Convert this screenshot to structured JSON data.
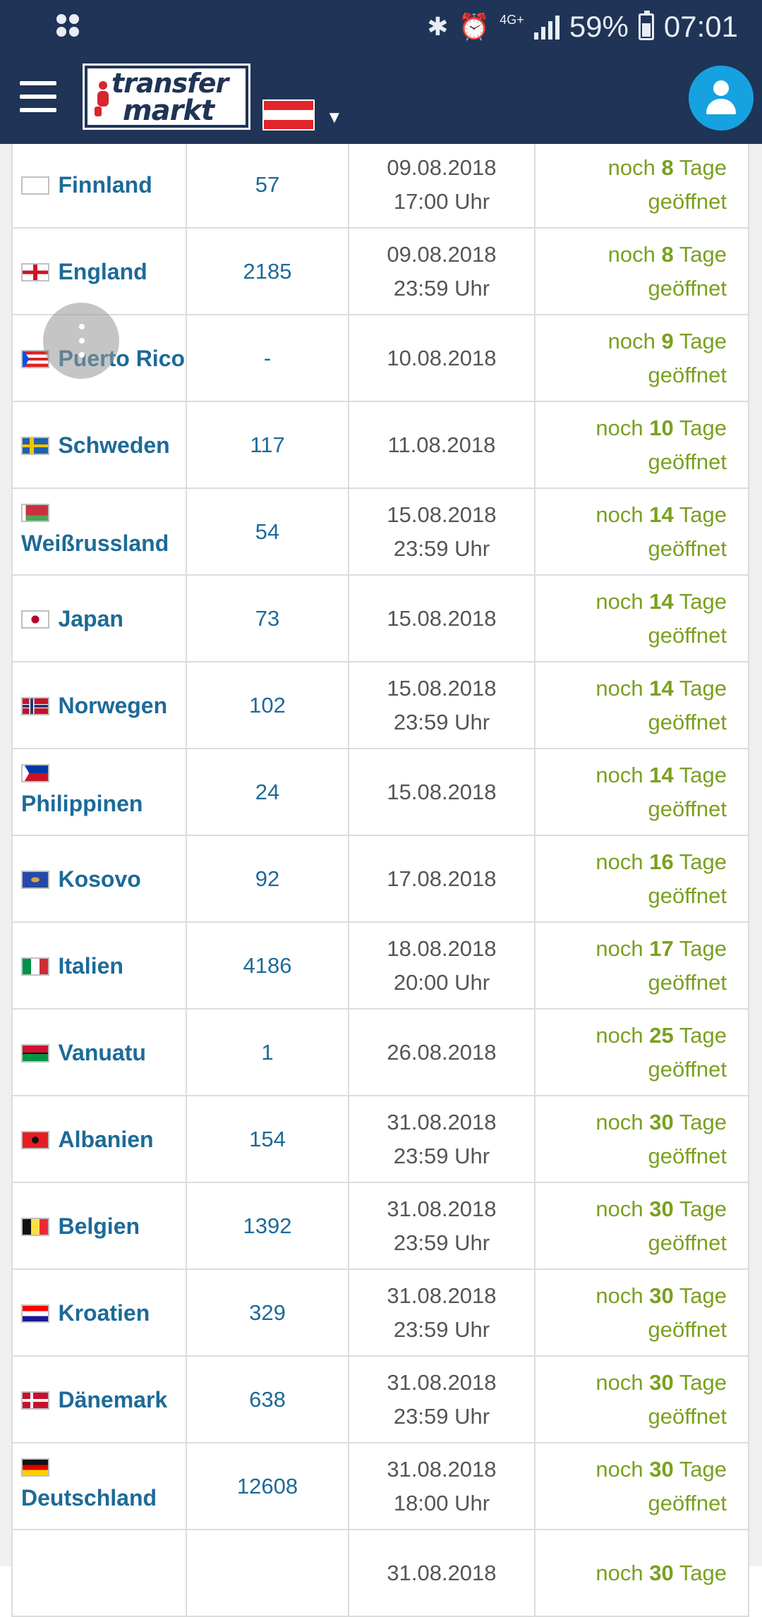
{
  "statusbar": {
    "network": "4G+",
    "battery": "59%",
    "time": "07:01",
    "battery_level": 0.59
  },
  "header": {
    "logo_line1": "transfer",
    "logo_line2": "markt",
    "country_flag": "Austria",
    "accent": "#16a2e0",
    "bg": "#1f3456"
  },
  "colors": {
    "country": "#1d6a98",
    "open": "#7aa01f"
  },
  "rows": [
    {
      "country": "Finnland",
      "flag": "finland",
      "count": "57",
      "date": "09.08.2018",
      "time": "17:00 Uhr",
      "status_pre": "noch",
      "days": "8",
      "status_post": "Tage",
      "status_line2": "geöffnet"
    },
    {
      "country": "England",
      "flag": "england",
      "count": "2185",
      "date": "09.08.2018",
      "time": "23:59 Uhr",
      "status_pre": "noch",
      "days": "8",
      "status_post": "Tage",
      "status_line2": "geöffnet"
    },
    {
      "country": "Puerto Rico",
      "flag": "puerto-rico",
      "count": "-",
      "date": "10.08.2018",
      "time": "",
      "status_pre": "noch",
      "days": "9",
      "status_post": "Tage",
      "status_line2": "geöffnet"
    },
    {
      "country": "Schweden",
      "flag": "sweden",
      "count": "117",
      "date": "11.08.2018",
      "time": "",
      "status_pre": "noch",
      "days": "10",
      "status_post": "Tage",
      "status_line2": "geöffnet"
    },
    {
      "country": "Weißrussland",
      "flag": "belarus",
      "count": "54",
      "date": "15.08.2018",
      "time": "23:59 Uhr",
      "status_pre": "noch",
      "days": "14",
      "status_post": "Tage",
      "status_line2": "geöffnet"
    },
    {
      "country": "Japan",
      "flag": "japan",
      "count": "73",
      "date": "15.08.2018",
      "time": "",
      "status_pre": "noch",
      "days": "14",
      "status_post": "Tage",
      "status_line2": "geöffnet"
    },
    {
      "country": "Norwegen",
      "flag": "norway",
      "count": "102",
      "date": "15.08.2018",
      "time": "23:59 Uhr",
      "status_pre": "noch",
      "days": "14",
      "status_post": "Tage",
      "status_line2": "geöffnet"
    },
    {
      "country": "Philippinen",
      "flag": "philippines",
      "count": "24",
      "date": "15.08.2018",
      "time": "",
      "status_pre": "noch",
      "days": "14",
      "status_post": "Tage",
      "status_line2": "geöffnet"
    },
    {
      "country": "Kosovo",
      "flag": "kosovo",
      "count": "92",
      "date": "17.08.2018",
      "time": "",
      "status_pre": "noch",
      "days": "16",
      "status_post": "Tage",
      "status_line2": "geöffnet"
    },
    {
      "country": "Italien",
      "flag": "italy",
      "count": "4186",
      "date": "18.08.2018",
      "time": "20:00 Uhr",
      "status_pre": "noch",
      "days": "17",
      "status_post": "Tage",
      "status_line2": "geöffnet"
    },
    {
      "country": "Vanuatu",
      "flag": "vanuatu",
      "count": "1",
      "date": "26.08.2018",
      "time": "",
      "status_pre": "noch",
      "days": "25",
      "status_post": "Tage",
      "status_line2": "geöffnet"
    },
    {
      "country": "Albanien",
      "flag": "albania",
      "count": "154",
      "date": "31.08.2018",
      "time": "23:59 Uhr",
      "status_pre": "noch",
      "days": "30",
      "status_post": "Tage",
      "status_line2": "geöffnet"
    },
    {
      "country": "Belgien",
      "flag": "belgium",
      "count": "1392",
      "date": "31.08.2018",
      "time": "23:59 Uhr",
      "status_pre": "noch",
      "days": "30",
      "status_post": "Tage",
      "status_line2": "geöffnet"
    },
    {
      "country": "Kroatien",
      "flag": "croatia",
      "count": "329",
      "date": "31.08.2018",
      "time": "23:59 Uhr",
      "status_pre": "noch",
      "days": "30",
      "status_post": "Tage",
      "status_line2": "geöffnet"
    },
    {
      "country": "Dänemark",
      "flag": "denmark",
      "count": "638",
      "date": "31.08.2018",
      "time": "23:59 Uhr",
      "status_pre": "noch",
      "days": "30",
      "status_post": "Tage",
      "status_line2": "geöffnet"
    },
    {
      "country": "Deutschland",
      "flag": "germany",
      "count": "12608",
      "date": "31.08.2018",
      "time": "18:00 Uhr",
      "status_pre": "noch",
      "days": "30",
      "status_post": "Tage",
      "status_line2": "geöffnet"
    },
    {
      "country": "",
      "flag": "",
      "count": "",
      "date": "31.08.2018",
      "time": "",
      "status_pre": "noch",
      "days": "30",
      "status_post": "Tage",
      "status_line2": ""
    }
  ]
}
